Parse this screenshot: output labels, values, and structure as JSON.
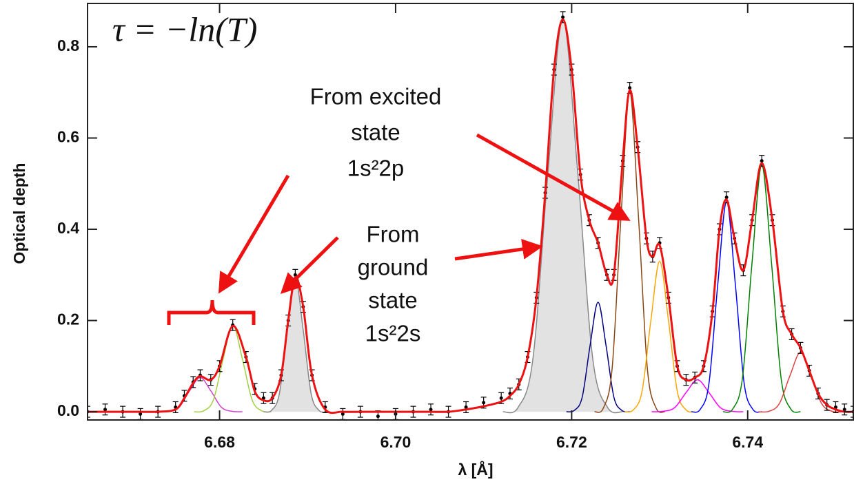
{
  "chart_data": {
    "type": "line",
    "xlabel": "λ [Å]",
    "ylabel": "Optical depth",
    "formula": "τ = −ln(T)",
    "annotation_excited": [
      "From excited",
      "state",
      "1s²2p"
    ],
    "annotation_ground": [
      "From",
      "ground",
      "state",
      "1s²2s"
    ],
    "xlim": [
      6.665,
      6.752
    ],
    "ylim": [
      -0.018,
      0.895
    ],
    "xticks": [
      6.68,
      {
        "value": 6.7,
        "label": "6.70"
      },
      6.72,
      6.74
    ],
    "yticks": [
      {
        "value": 0,
        "label": "0.0"
      },
      0.2,
      0.4,
      0.6,
      0.8
    ],
    "x": [
      6.665,
      6.667,
      6.669,
      6.671,
      6.673,
      6.675,
      6.676,
      6.677,
      6.6778,
      6.679,
      6.68,
      6.6815,
      6.683,
      6.684,
      6.685,
      6.686,
      6.687,
      6.6878,
      6.6886,
      6.6895,
      6.6905,
      6.692,
      6.694,
      6.696,
      6.698,
      6.7,
      6.702,
      6.704,
      6.706,
      6.708,
      6.71,
      6.712,
      6.713,
      6.714,
      6.715,
      6.716,
      6.717,
      6.718,
      6.719,
      6.72,
      6.721,
      6.722,
      6.723,
      6.724,
      6.7248,
      6.7258,
      6.7266,
      6.7275,
      6.7285,
      6.7292,
      6.73,
      6.731,
      6.732,
      6.733,
      6.734,
      6.735,
      6.736,
      6.7368,
      6.7376,
      6.7385,
      6.7395,
      6.7405,
      6.7416,
      6.7428,
      6.744,
      6.745,
      6.746,
      6.747,
      6.748,
      6.749,
      6.75,
      6.751,
      6.752
    ],
    "series": [
      {
        "color": "#000000",
        "error": 0.012,
        "values": [
          0.0,
          0.005,
          0.0,
          -0.005,
          0.0,
          0.01,
          0.035,
          0.065,
          0.08,
          0.07,
          0.1,
          0.19,
          0.12,
          0.05,
          0.03,
          0.03,
          0.08,
          0.2,
          0.3,
          0.23,
          0.08,
          0.01,
          -0.005,
          0.0,
          -0.01,
          -0.005,
          0.0,
          0.005,
          0.0,
          0.01,
          0.02,
          0.03,
          0.04,
          0.06,
          0.12,
          0.25,
          0.48,
          0.75,
          0.865,
          0.75,
          0.52,
          0.42,
          0.37,
          0.3,
          0.3,
          0.55,
          0.71,
          0.58,
          0.38,
          0.34,
          0.37,
          0.25,
          0.1,
          0.07,
          0.075,
          0.1,
          0.22,
          0.4,
          0.47,
          0.38,
          0.31,
          0.42,
          0.55,
          0.42,
          0.22,
          0.17,
          0.14,
          0.09,
          0.04,
          0.015,
          0.01,
          0.005,
          0.0
        ]
      },
      {
        "color": "#ee1111",
        "values": [
          0.0,
          0.0,
          0.0,
          0.0,
          0.0,
          0.005,
          0.03,
          0.063,
          0.078,
          0.07,
          0.1,
          0.188,
          0.12,
          0.045,
          0.025,
          0.03,
          0.08,
          0.2,
          0.295,
          0.23,
          0.08,
          0.005,
          0.0,
          0.0,
          0.0,
          0.0,
          0.0,
          0.0,
          0.0,
          0.005,
          0.012,
          0.022,
          0.035,
          0.06,
          0.12,
          0.25,
          0.48,
          0.75,
          0.86,
          0.75,
          0.52,
          0.42,
          0.37,
          0.3,
          0.3,
          0.55,
          0.705,
          0.58,
          0.38,
          0.34,
          0.365,
          0.25,
          0.1,
          0.07,
          0.075,
          0.1,
          0.22,
          0.4,
          0.465,
          0.38,
          0.31,
          0.42,
          0.545,
          0.42,
          0.22,
          0.17,
          0.14,
          0.09,
          0.04,
          0.015,
          0.005,
          0.0,
          0.0
        ]
      }
    ],
    "components": [
      {
        "color": "#d040d0",
        "x": [
          6.673,
          6.6742,
          6.6754,
          6.6766,
          6.6778,
          6.679,
          6.6802,
          6.6814,
          6.6826
        ],
        "values": [
          0,
          0.001,
          0.01,
          0.046,
          0.075,
          0.046,
          0.01,
          0.001,
          0
        ]
      },
      {
        "color": "#a0d040",
        "x": [
          6.6771,
          6.6782,
          6.6793,
          6.6804,
          6.6815,
          6.6826,
          6.6837,
          6.6848,
          6.6859
        ],
        "values": [
          0,
          0.002,
          0.026,
          0.115,
          0.19,
          0.115,
          0.026,
          0.002,
          0
        ]
      },
      {
        "color": "#888888",
        "fill": "#e2e2e2",
        "x": [
          6.685,
          6.6859,
          6.6868,
          6.6877,
          6.6886,
          6.6895,
          6.6904,
          6.6913,
          6.6922
        ],
        "values": [
          0,
          0.003,
          0.04,
          0.179,
          0.295,
          0.179,
          0.04,
          0.003,
          0
        ]
      },
      {
        "color": "#888888",
        "fill": "#e2e2e2",
        "x": [
          6.7122,
          6.7139,
          6.7156,
          6.7173,
          6.719,
          6.7207,
          6.7224,
          6.7241,
          6.7258
        ],
        "values": [
          0,
          0.009,
          0.116,
          0.522,
          0.86,
          0.522,
          0.116,
          0.009,
          0
        ]
      },
      {
        "color": "#000080",
        "x": [
          6.7194,
          6.7203,
          6.7212,
          6.7221,
          6.723,
          6.7239,
          6.7248,
          6.7257,
          6.7266
        ],
        "values": [
          0,
          0.003,
          0.032,
          0.146,
          0.24,
          0.146,
          0.032,
          0.003,
          0
        ]
      },
      {
        "color": "#8b4513",
        "x": [
          6.7226,
          6.7236,
          6.7246,
          6.7256,
          6.7266,
          6.7276,
          6.7286,
          6.7296,
          6.7306
        ],
        "values": [
          0,
          0.008,
          0.095,
          0.425,
          0.7,
          0.425,
          0.095,
          0.008,
          0
        ]
      },
      {
        "color": "#ffa500",
        "x": [
          6.726,
          6.727,
          6.728,
          6.729,
          6.73,
          6.731,
          6.732,
          6.733,
          6.734
        ],
        "values": [
          0,
          0.004,
          0.045,
          0.2,
          0.33,
          0.2,
          0.045,
          0.004,
          0
        ]
      },
      {
        "color": "#ff00ff",
        "x": [
          6.7291,
          6.7304,
          6.7317,
          6.733,
          6.7343,
          6.7356,
          6.7369,
          6.7382,
          6.7395
        ],
        "values": [
          0,
          0.001,
          0.009,
          0.042,
          0.07,
          0.042,
          0.009,
          0.001,
          0
        ]
      },
      {
        "color": "#0000ff",
        "x": [
          6.7336,
          6.7346,
          6.7356,
          6.7366,
          6.7376,
          6.7386,
          6.7396,
          6.7406,
          6.7416
        ],
        "values": [
          0,
          0.005,
          0.062,
          0.279,
          0.46,
          0.279,
          0.062,
          0.005,
          0
        ]
      },
      {
        "color": "#008000",
        "x": [
          6.7372,
          6.7383,
          6.7394,
          6.7405,
          6.7416,
          6.7427,
          6.7438,
          6.7449,
          6.746
        ],
        "values": [
          0,
          0.006,
          0.073,
          0.328,
          0.54,
          0.328,
          0.073,
          0.006,
          0
        ]
      },
      {
        "color": "#e04040",
        "x": [
          6.7412,
          6.7424,
          6.7436,
          6.7448,
          6.746,
          6.7472,
          6.7484,
          6.7496,
          6.7508
        ],
        "values": [
          0,
          0.001,
          0.018,
          0.079,
          0.13,
          0.079,
          0.018,
          0.001,
          0
        ]
      }
    ]
  }
}
